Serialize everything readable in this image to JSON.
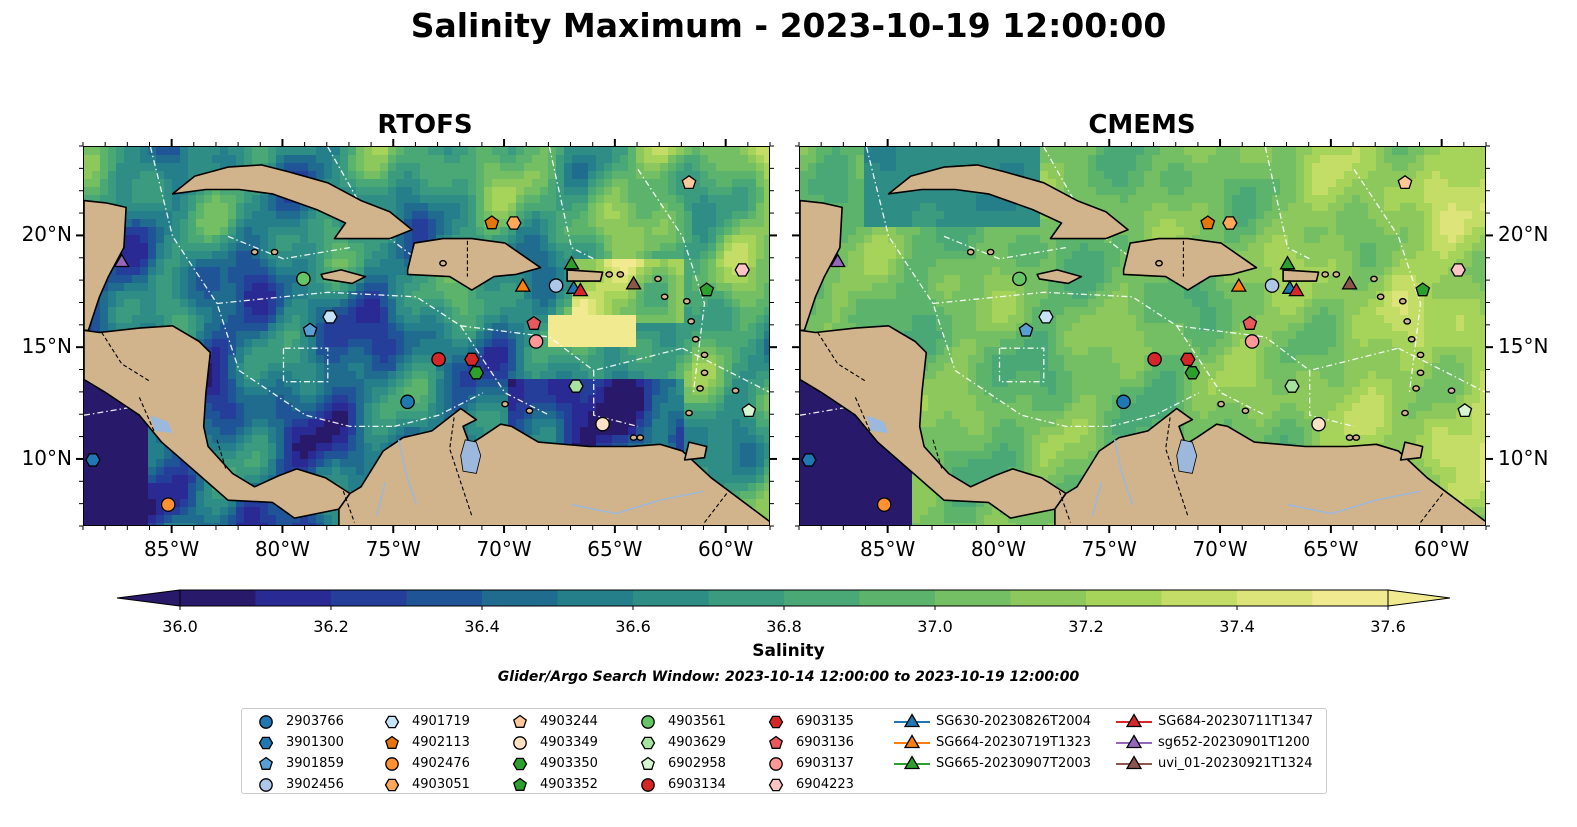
{
  "title": "Salinity Maximum - 2023-10-19 12:00:00",
  "panels": [
    {
      "title": "RTOFS",
      "model": "rtofs"
    },
    {
      "title": "CMEMS",
      "model": "cmems"
    }
  ],
  "map_extent": {
    "lon": [
      -89,
      -58
    ],
    "lat": [
      7,
      24
    ]
  },
  "lon_ticks": [
    {
      "lon": -85,
      "label": "85°W"
    },
    {
      "lon": -80,
      "label": "80°W"
    },
    {
      "lon": -75,
      "label": "75°W"
    },
    {
      "lon": -70,
      "label": "70°W"
    },
    {
      "lon": -65,
      "label": "65°W"
    },
    {
      "lon": -60,
      "label": "60°W"
    }
  ],
  "lat_ticks": [
    {
      "lat": 20,
      "label": "20°N"
    },
    {
      "lat": 15,
      "label": "15°N"
    },
    {
      "lat": 10,
      "label": "10°N"
    }
  ],
  "colorbar": {
    "label": "Salinity",
    "range": [
      36.0,
      37.6
    ],
    "extend": "both",
    "ticks": [
      "36.0",
      "36.2",
      "36.4",
      "36.6",
      "36.8",
      "37.0",
      "37.2",
      "37.4",
      "37.6"
    ],
    "colors": [
      "#28196b",
      "#2a2a94",
      "#243e9a",
      "#1f5597",
      "#1f6c8f",
      "#247f8a",
      "#2e8e85",
      "#3a9b7f",
      "#4aa876",
      "#5cb46c",
      "#74bf63",
      "#8dc85d",
      "#a6d35a",
      "#c3dd66",
      "#dde57a",
      "#f2ea90"
    ]
  },
  "search_window": "Glider/Argo Search Window: 2023-10-14 12:00:00 to 2023-10-19 12:00:00",
  "colors": {
    "land": "#d2b48c",
    "lakes": "#9cb8dd",
    "outline": "#000000",
    "eez": "#ffffff"
  },
  "legend": [
    {
      "id": "2903766",
      "marker": "circle",
      "color": "#1f77b4"
    },
    {
      "id": "3901300",
      "marker": "hexagon",
      "color": "#1f77b4"
    },
    {
      "id": "3901859",
      "marker": "pentagon",
      "color": "#5a9fd4"
    },
    {
      "id": "3902456",
      "marker": "circle",
      "color": "#aec7e8"
    },
    {
      "id": "4901719",
      "marker": "hexagon",
      "color": "#c6e3f7"
    },
    {
      "id": "4902113",
      "marker": "pentagon",
      "color": "#e6750e"
    },
    {
      "id": "4902476",
      "marker": "circle",
      "color": "#ff9130"
    },
    {
      "id": "4903051",
      "marker": "hexagon",
      "color": "#ffa85a"
    },
    {
      "id": "4903244",
      "marker": "pentagon",
      "color": "#ffc79a"
    },
    {
      "id": "4903349",
      "marker": "circle",
      "color": "#ffe1c6"
    },
    {
      "id": "4903350",
      "marker": "hexagon",
      "color": "#2ca02c"
    },
    {
      "id": "4903352",
      "marker": "pentagon",
      "color": "#2ca02c"
    },
    {
      "id": "4903561",
      "marker": "circle",
      "color": "#65c465"
    },
    {
      "id": "4903629",
      "marker": "hexagon",
      "color": "#a8e2a0"
    },
    {
      "id": "6902958",
      "marker": "pentagon",
      "color": "#d6f5d0"
    },
    {
      "id": "6903134",
      "marker": "circle",
      "color": "#d62728"
    },
    {
      "id": "6903135",
      "marker": "hexagon",
      "color": "#d62728"
    },
    {
      "id": "6903136",
      "marker": "pentagon",
      "color": "#e8585c"
    },
    {
      "id": "6903137",
      "marker": "circle",
      "color": "#ff9896"
    },
    {
      "id": "6904223",
      "marker": "hexagon",
      "color": "#ffc4c4"
    },
    {
      "id": "SG630-20230826T2004",
      "marker": "triangle",
      "color": "#1f77b4",
      "glider": true
    },
    {
      "id": "SG664-20230719T1323",
      "marker": "triangle",
      "color": "#ff7f0e",
      "glider": true
    },
    {
      "id": "SG665-20230907T2003",
      "marker": "triangle",
      "color": "#2ca02c",
      "glider": true
    },
    {
      "id": "SG684-20230711T1347",
      "marker": "triangle",
      "color": "#d62728",
      "glider": true
    },
    {
      "id": "sg652-20230901T1200",
      "marker": "triangle",
      "color": "#9467bd",
      "glider": true
    },
    {
      "id": "uvi_01-20230921T1324",
      "marker": "triangle",
      "color": "#8c564b",
      "glider": true
    }
  ],
  "observations": [
    {
      "id": "2903766",
      "lon": -74.4,
      "lat": 12.6
    },
    {
      "id": "3901300",
      "lon": -88.6,
      "lat": 10.0
    },
    {
      "id": "3901859",
      "lon": -78.8,
      "lat": 15.8
    },
    {
      "id": "3902456",
      "lon": -67.7,
      "lat": 17.8
    },
    {
      "id": "4901719",
      "lon": -77.9,
      "lat": 16.4
    },
    {
      "id": "4902113",
      "lon": -70.6,
      "lat": 20.6
    },
    {
      "id": "4902476",
      "lon": -85.2,
      "lat": 8.0
    },
    {
      "id": "4903051",
      "lon": -69.6,
      "lat": 20.6
    },
    {
      "id": "4903244",
      "lon": -61.7,
      "lat": 22.4
    },
    {
      "id": "4903349",
      "lon": -65.6,
      "lat": 11.6
    },
    {
      "id": "4903350",
      "lon": -71.3,
      "lat": 13.9
    },
    {
      "id": "4903352",
      "lon": -60.9,
      "lat": 17.6
    },
    {
      "id": "4903561",
      "lon": -79.1,
      "lat": 18.1
    },
    {
      "id": "4903629",
      "lon": -66.8,
      "lat": 13.3
    },
    {
      "id": "6902958",
      "lon": -59.0,
      "lat": 12.2
    },
    {
      "id": "6903134",
      "lon": -73.0,
      "lat": 14.5
    },
    {
      "id": "6903135",
      "lon": -71.5,
      "lat": 14.5
    },
    {
      "id": "6903136",
      "lon": -68.7,
      "lat": 16.1
    },
    {
      "id": "6903137",
      "lon": -68.6,
      "lat": 15.3
    },
    {
      "id": "6904223",
      "lon": -59.3,
      "lat": 18.5
    },
    {
      "id": "SG630-20230826T2004",
      "lon": -66.9,
      "lat": 17.7
    },
    {
      "id": "SG664-20230719T1323",
      "lon": -69.2,
      "lat": 17.8
    },
    {
      "id": "SG665-20230907T2003",
      "lon": -67.0,
      "lat": 18.8
    },
    {
      "id": "SG684-20230711T1347",
      "lon": -66.6,
      "lat": 17.6
    },
    {
      "id": "sg652-20230901T1200",
      "lon": -87.3,
      "lat": 18.9
    },
    {
      "id": "uvi_01-20230921T1324",
      "lon": -64.2,
      "lat": 17.9
    }
  ]
}
